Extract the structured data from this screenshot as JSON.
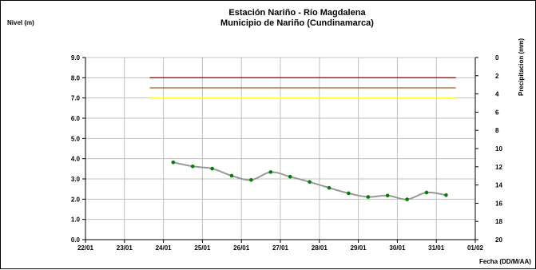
{
  "chart_data": {
    "type": "line",
    "title": "Estación Nariño  - Río Magdalena",
    "subtitle": "Municipio de Nariño (Cundinamarca)",
    "ylabel": "Nivel (m)",
    "y2label": "Precipitacion (mm)",
    "xlabel": "Fecha (DD/M/AA)",
    "ylim": [
      0,
      9
    ],
    "y2lim": [
      0,
      20
    ],
    "y2_inverted": true,
    "xlim": [
      0,
      10
    ],
    "grid": true,
    "yticks": [
      "0.0",
      "1.0",
      "2.0",
      "3.0",
      "4.0",
      "5.0",
      "6.0",
      "7.0",
      "8.0",
      "9.0"
    ],
    "y2ticks": [
      "0",
      "2",
      "4",
      "6",
      "8",
      "10",
      "12",
      "14",
      "16",
      "18",
      "20"
    ],
    "xticks": [
      "22/01",
      "23/01",
      "24/01",
      "25/01",
      "26/01",
      "27/01",
      "28/01",
      "29/01",
      "30/01",
      "31/01",
      "01/02"
    ],
    "thresholds": [
      {
        "value": 8.0,
        "color": "#cc0000",
        "x_range": [
          1.65,
          9.5
        ]
      },
      {
        "value": 7.5,
        "color": "#996633",
        "x_range": [
          1.65,
          9.5
        ]
      },
      {
        "value": 7.0,
        "color": "#ffff33",
        "x_range": [
          1.65,
          9.5
        ]
      }
    ],
    "series": [
      {
        "color": "#999999",
        "marker_color": "#008000",
        "x": [
          2.25,
          2.75,
          3.25,
          3.75,
          4.25,
          4.75,
          5.25,
          5.75,
          6.25,
          6.75,
          7.25,
          7.75,
          8.25,
          8.75,
          9.25
        ],
        "y": [
          3.82,
          3.62,
          3.51,
          3.16,
          2.95,
          3.34,
          3.11,
          2.85,
          2.56,
          2.29,
          2.11,
          2.18,
          1.99,
          2.33,
          2.2
        ]
      }
    ]
  }
}
